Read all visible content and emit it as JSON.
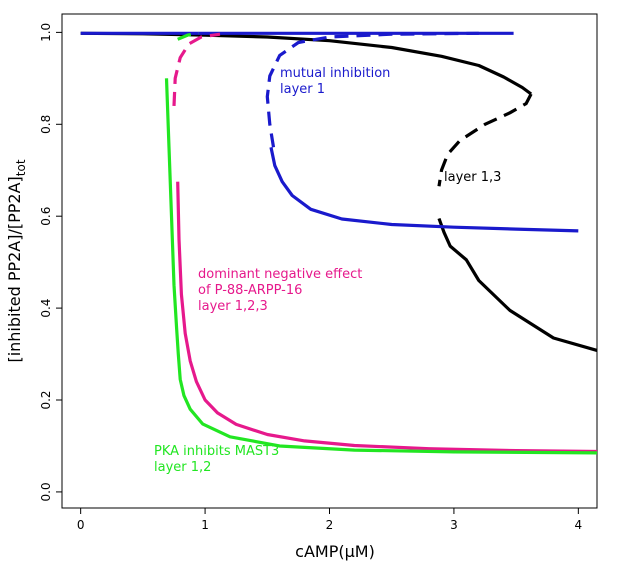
{
  "chart_data": {
    "type": "line",
    "xlabel": "cAMP(μM)",
    "ylabel": {
      "main": "[inhibited PP2A]/[PP2A]",
      "subscript": "tot"
    },
    "xlim": [
      -0.15,
      4.15
    ],
    "ylim": [
      -0.035,
      1.04
    ],
    "xticks": [
      0,
      1,
      2,
      3,
      4
    ],
    "yticks": [
      0.0,
      0.2,
      0.4,
      0.6,
      0.8,
      1.0
    ],
    "ytick_labels": [
      "0.0",
      "0.2",
      "0.4",
      "0.6",
      "0.8",
      "1.0"
    ],
    "grid": false,
    "colors": {
      "black": "#000000",
      "blue": "#1a1acc",
      "magenta": "#e6198c",
      "green": "#22e622"
    },
    "annotations": [
      {
        "id": "blue",
        "lines": [
          "mutual inhibition",
          "layer 1"
        ],
        "color": "#1a1acc"
      },
      {
        "id": "black",
        "lines": [
          "layer 1,3"
        ],
        "color": "#000000"
      },
      {
        "id": "magenta",
        "lines": [
          "dominant negative effect",
          "of P-88-ARPP-16",
          "layer 1,2,3"
        ],
        "color": "#e6198c"
      },
      {
        "id": "green",
        "lines": [
          "PKA inhibits MAST3",
          "layer 1,2"
        ],
        "color": "#22e622"
      }
    ],
    "series": [
      {
        "color": "#000000",
        "segments": [
          {
            "style": "solid",
            "points": [
              [
                0.0,
                0.998
              ],
              [
                0.5,
                0.997
              ],
              [
                1.0,
                0.994
              ],
              [
                1.5,
                0.99
              ],
              [
                2.0,
                0.982
              ],
              [
                2.5,
                0.967
              ],
              [
                2.9,
                0.948
              ],
              [
                3.2,
                0.928
              ],
              [
                3.4,
                0.903
              ],
              [
                3.55,
                0.88
              ],
              [
                3.62,
                0.866
              ]
            ]
          },
          {
            "style": "dashed",
            "points": [
              [
                3.62,
                0.866
              ],
              [
                3.58,
                0.845
              ],
              [
                3.45,
                0.825
              ],
              [
                3.25,
                0.8
              ],
              [
                3.05,
                0.765
              ],
              [
                2.95,
                0.735
              ],
              [
                2.9,
                0.7
              ],
              [
                2.88,
                0.665
              ]
            ]
          },
          {
            "style": "solid",
            "points": [
              [
                2.88,
                0.595
              ],
              [
                2.92,
                0.565
              ],
              [
                2.97,
                0.535
              ],
              [
                3.1,
                0.505
              ],
              [
                3.2,
                0.46
              ],
              [
                3.45,
                0.395
              ],
              [
                3.8,
                0.335
              ],
              [
                4.15,
                0.308
              ]
            ]
          }
        ]
      },
      {
        "color": "#1a1acc",
        "segments": [
          {
            "style": "solid",
            "points": [
              [
                0.0,
                0.998
              ],
              [
                0.5,
                0.998
              ],
              [
                1.0,
                0.998
              ],
              [
                2.0,
                0.998
              ],
              [
                3.0,
                0.998
              ],
              [
                3.48,
                0.998
              ]
            ]
          },
          {
            "style": "dashed",
            "points": [
              [
                1.55,
                0.75
              ],
              [
                1.52,
                0.8
              ],
              [
                1.5,
                0.86
              ],
              [
                1.52,
                0.905
              ],
              [
                1.6,
                0.95
              ],
              [
                1.75,
                0.978
              ],
              [
                2.0,
                0.99
              ],
              [
                2.5,
                0.996
              ],
              [
                3.2,
                0.998
              ]
            ]
          },
          {
            "style": "solid",
            "points": [
              [
                1.53,
                0.75
              ],
              [
                1.56,
                0.71
              ],
              [
                1.62,
                0.675
              ],
              [
                1.7,
                0.645
              ],
              [
                1.85,
                0.615
              ],
              [
                2.1,
                0.594
              ],
              [
                2.5,
                0.582
              ],
              [
                3.0,
                0.576
              ],
              [
                3.5,
                0.572
              ],
              [
                4.0,
                0.568
              ]
            ]
          }
        ]
      },
      {
        "color": "#e6198c",
        "segments": [
          {
            "style": "dashed",
            "points": [
              [
                0.75,
                0.84
              ],
              [
                0.76,
                0.9
              ],
              [
                0.8,
                0.945
              ],
              [
                0.87,
                0.975
              ],
              [
                0.97,
                0.99
              ],
              [
                1.12,
                0.996
              ]
            ]
          },
          {
            "style": "solid",
            "points": [
              [
                0.78,
                0.675
              ],
              [
                0.79,
                0.55
              ],
              [
                0.81,
                0.43
              ],
              [
                0.84,
                0.345
              ],
              [
                0.88,
                0.285
              ],
              [
                0.93,
                0.24
              ],
              [
                1.0,
                0.2
              ],
              [
                1.1,
                0.172
              ],
              [
                1.25,
                0.147
              ],
              [
                1.5,
                0.125
              ],
              [
                1.8,
                0.111
              ],
              [
                2.2,
                0.101
              ],
              [
                2.8,
                0.094
              ],
              [
                3.5,
                0.09
              ],
              [
                4.15,
                0.088
              ]
            ]
          }
        ]
      },
      {
        "color": "#22e622",
        "segments": [
          {
            "style": "dashed",
            "points": [
              [
                0.78,
                0.985
              ],
              [
                0.86,
                0.994
              ],
              [
                0.95,
                0.998
              ]
            ]
          },
          {
            "style": "solid",
            "points": [
              [
                0.69,
                0.9
              ],
              [
                0.71,
                0.75
              ],
              [
                0.73,
                0.6
              ],
              [
                0.75,
                0.45
              ],
              [
                0.77,
                0.36
              ],
              [
                0.785,
                0.3
              ],
              [
                0.8,
                0.245
              ],
              [
                0.83,
                0.21
              ],
              [
                0.88,
                0.18
              ],
              [
                0.98,
                0.148
              ],
              [
                1.2,
                0.12
              ],
              [
                1.6,
                0.1
              ],
              [
                2.2,
                0.091
              ],
              [
                3.0,
                0.087
              ],
              [
                4.15,
                0.085
              ]
            ]
          }
        ]
      }
    ]
  }
}
